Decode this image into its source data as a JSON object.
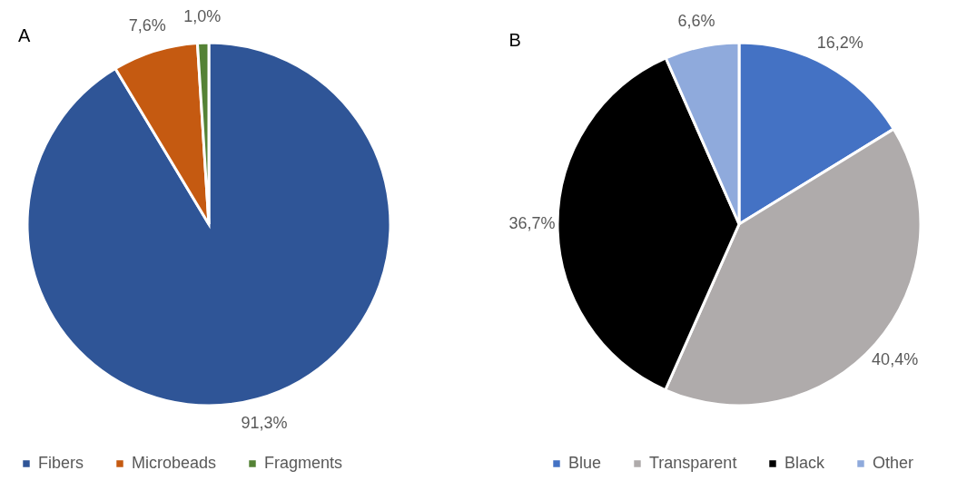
{
  "chart_data": [
    {
      "type": "pie",
      "title": "A",
      "categories": [
        "Fibers",
        "Microbeads",
        "Fragments"
      ],
      "values": [
        91.3,
        7.6,
        1.0
      ],
      "colors": [
        "#2f5597",
        "#c55a11",
        "#548235"
      ],
      "value_labels": [
        "91,3%",
        "7,6%",
        "1,0%"
      ],
      "legend": "bottom"
    },
    {
      "type": "pie",
      "title": "B",
      "categories": [
        "Blue",
        "Transparent",
        "Black",
        "Other"
      ],
      "values": [
        16.2,
        40.4,
        36.7,
        6.6
      ],
      "colors": [
        "#4472c4",
        "#afabab",
        "#000000",
        "#8faadc"
      ],
      "value_labels": [
        "16,2%",
        "40,4%",
        "36,7%",
        "6,6%"
      ],
      "legend": "bottom"
    }
  ]
}
